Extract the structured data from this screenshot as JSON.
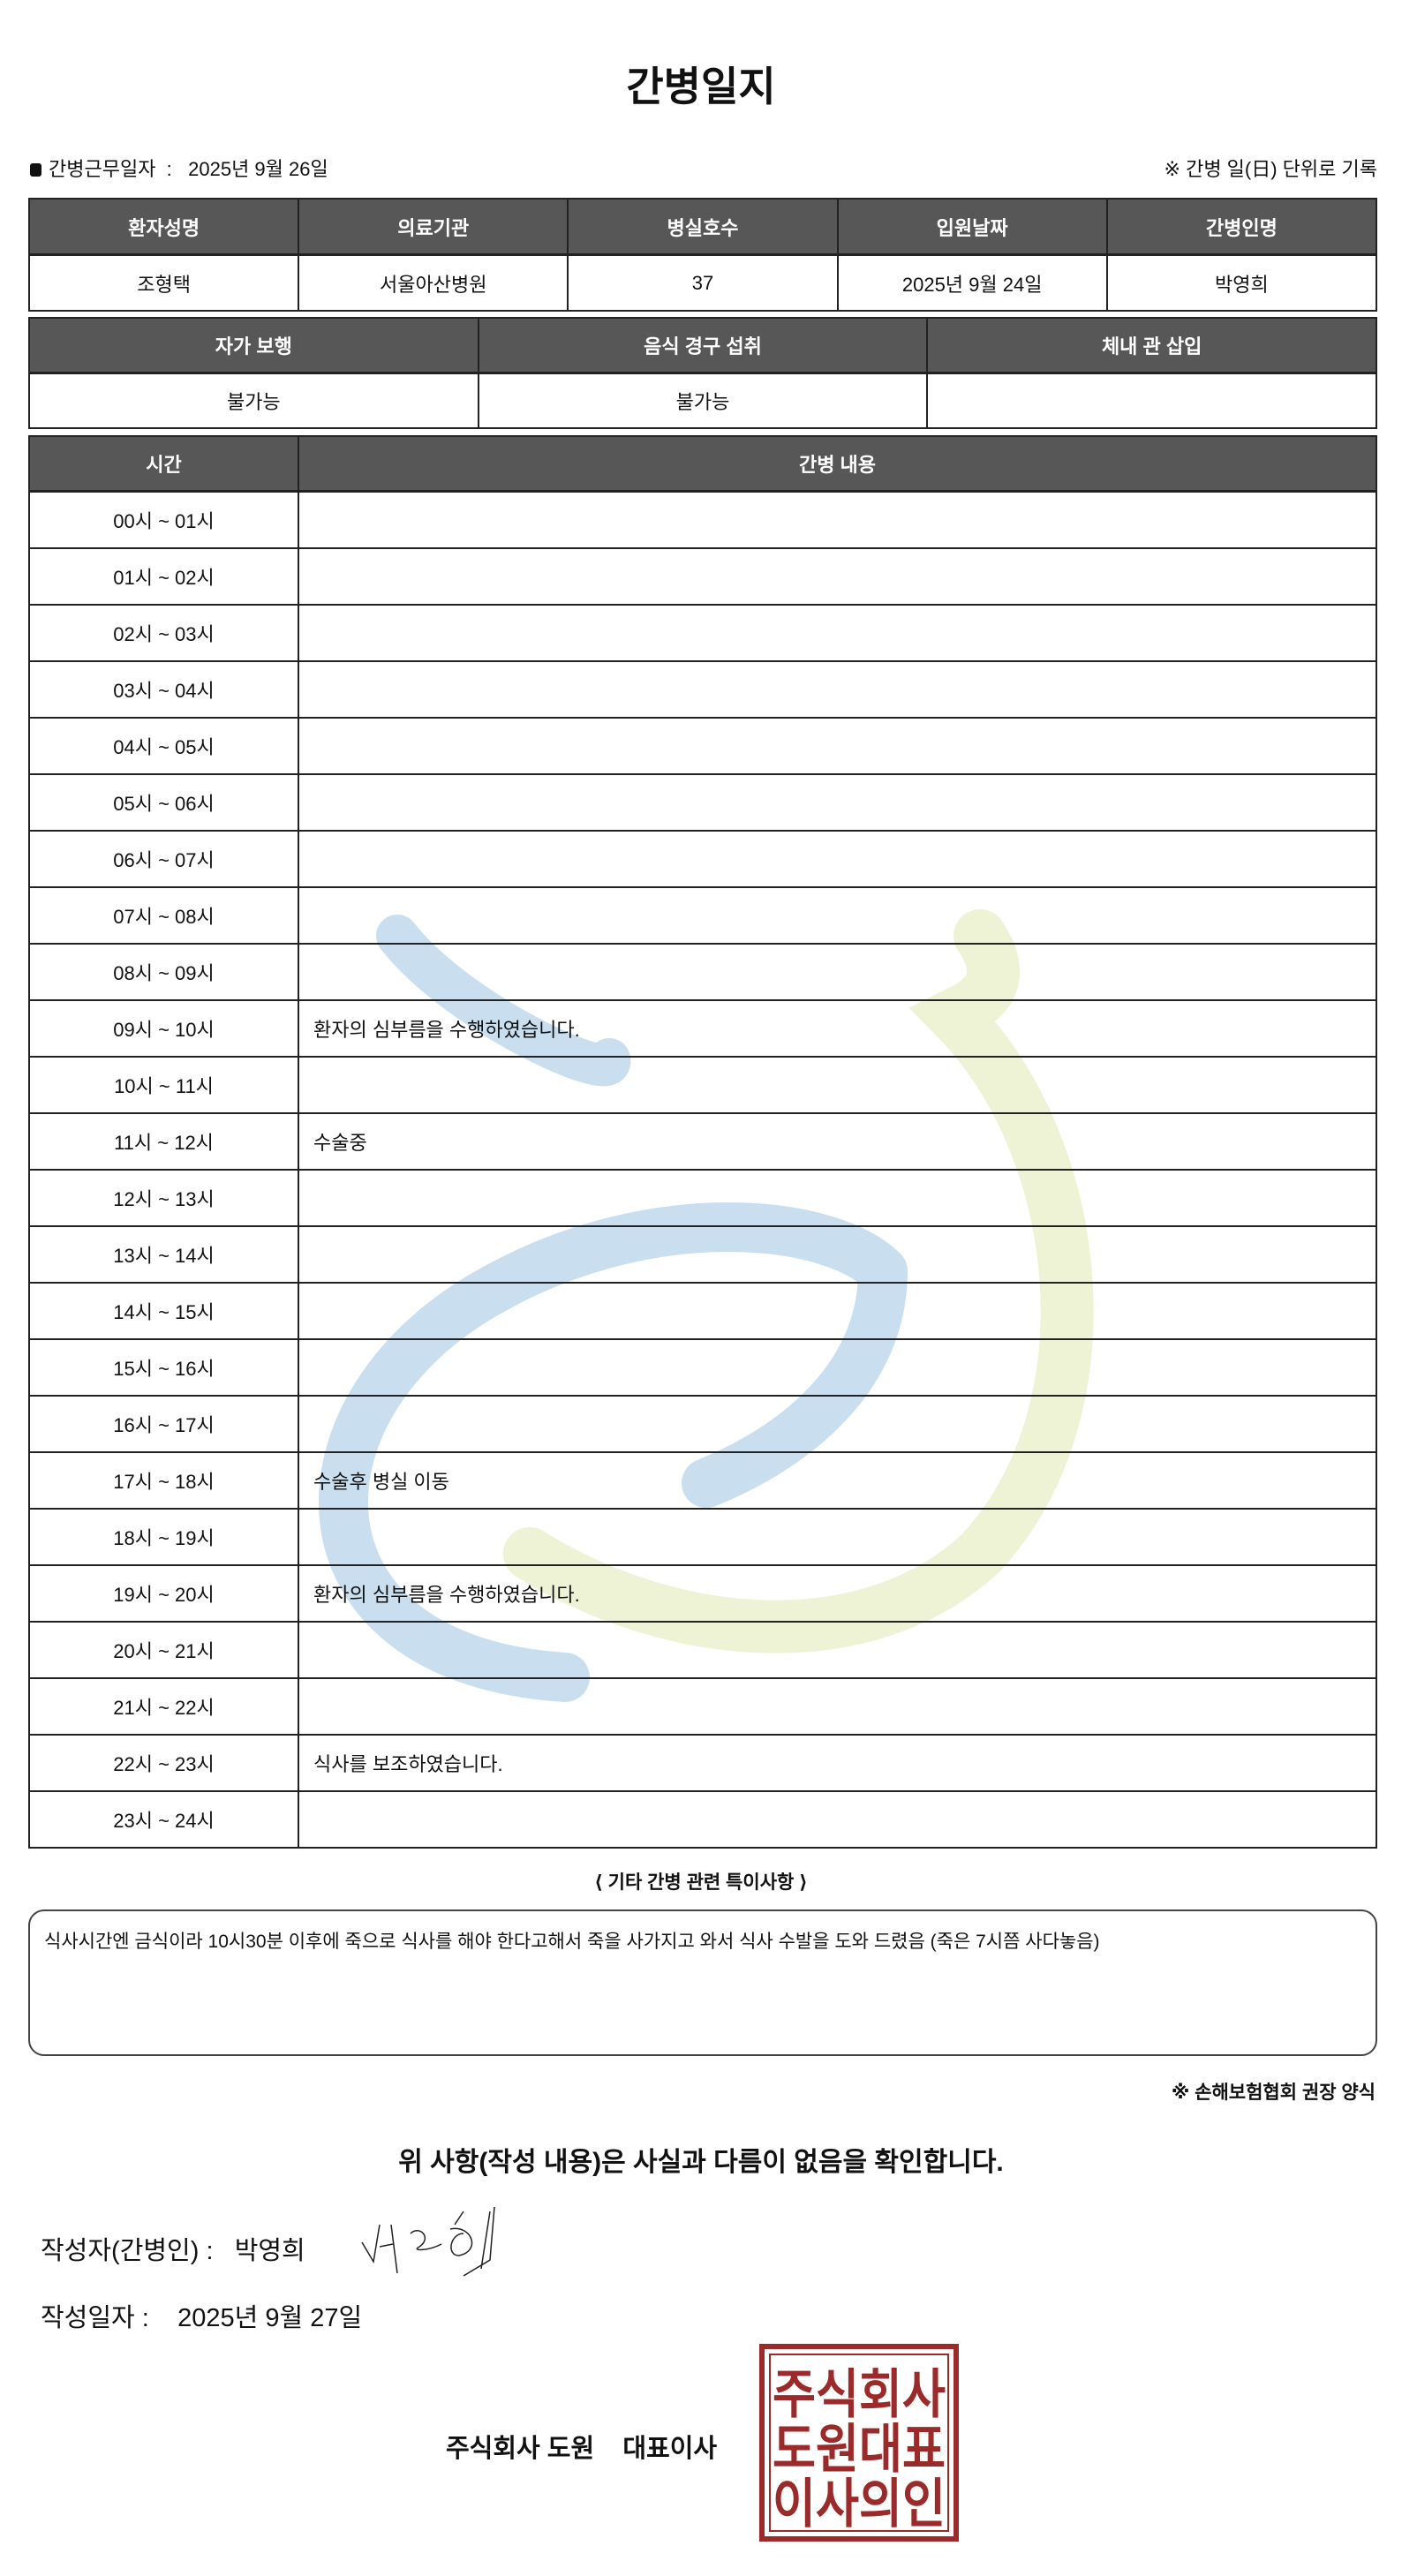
{
  "title": "간병일지",
  "work_date_label": "간병근무일자",
  "work_date_value": "2025년 9월 26일",
  "record_note": "※ 간병 일(日) 단위로 기록",
  "patient_table": {
    "headers": [
      "환자성명",
      "의료기관",
      "병실호수",
      "입원날짜",
      "간병인명"
    ],
    "values": [
      "조형택",
      "서울아산병원",
      "37",
      "2025년 9월 24일",
      "박영희"
    ]
  },
  "status_table": {
    "headers": [
      "자가 보행",
      "음식 경구 섭취",
      "체내 관 삽입"
    ],
    "values": [
      "불가능",
      "불가능",
      ""
    ]
  },
  "log_table": {
    "headers": [
      "시간",
      "간병 내용"
    ],
    "rows": [
      {
        "time": "00시 ~ 01시",
        "content": ""
      },
      {
        "time": "01시 ~ 02시",
        "content": ""
      },
      {
        "time": "02시 ~ 03시",
        "content": ""
      },
      {
        "time": "03시 ~ 04시",
        "content": ""
      },
      {
        "time": "04시 ~ 05시",
        "content": ""
      },
      {
        "time": "05시 ~ 06시",
        "content": ""
      },
      {
        "time": "06시 ~ 07시",
        "content": ""
      },
      {
        "time": "07시 ~ 08시",
        "content": ""
      },
      {
        "time": "08시 ~ 09시",
        "content": ""
      },
      {
        "time": "09시 ~ 10시",
        "content": "환자의 심부름을 수행하였습니다."
      },
      {
        "time": "10시 ~ 11시",
        "content": ""
      },
      {
        "time": "11시 ~ 12시",
        "content": "수술중"
      },
      {
        "time": "12시 ~ 13시",
        "content": ""
      },
      {
        "time": "13시 ~ 14시",
        "content": ""
      },
      {
        "time": "14시 ~ 15시",
        "content": ""
      },
      {
        "time": "15시 ~ 16시",
        "content": ""
      },
      {
        "time": "16시 ~ 17시",
        "content": ""
      },
      {
        "time": "17시 ~ 18시",
        "content": "수술후 병실 이동"
      },
      {
        "time": "18시 ~ 19시",
        "content": ""
      },
      {
        "time": "19시 ~ 20시",
        "content": "환자의 심부름을 수행하였습니다."
      },
      {
        "time": "20시 ~ 21시",
        "content": ""
      },
      {
        "time": "21시 ~ 22시",
        "content": ""
      },
      {
        "time": "22시 ~ 23시",
        "content": "식사를 보조하였습니다."
      },
      {
        "time": "23시 ~ 24시",
        "content": ""
      }
    ]
  },
  "special_notes_title": "⟨ 기타 간병 관련 특이사항 ⟩",
  "special_notes": "식사시간엔 금식이라 10시30분 이후에 죽으로 식사를 해야 한다고해서 죽을 사가지고 와서 식사 수발을 도와 드렸음 (죽은 7시쯤 사다놓음)",
  "form_source": "※ 손해보험협회 권장 양식",
  "confirmation": "위 사항(작성 내용)은 사실과 다름이 없음을 확인합니다.",
  "writer_label": "작성자(간병인) :",
  "writer_name": "박영희",
  "signature_text": "박영희",
  "written_date_label": "작성일자 :",
  "written_date_value": "2025년 9월 27일",
  "company": "주식회사 도원    대표이사",
  "seal_text": [
    "주식회사",
    "도원대표",
    "이사의인"
  ],
  "colors": {
    "header_bg": "#575757",
    "seal": "#9b2a2a",
    "watermark_blue": "#c9dff0",
    "watermark_green": "#eef3d6"
  }
}
